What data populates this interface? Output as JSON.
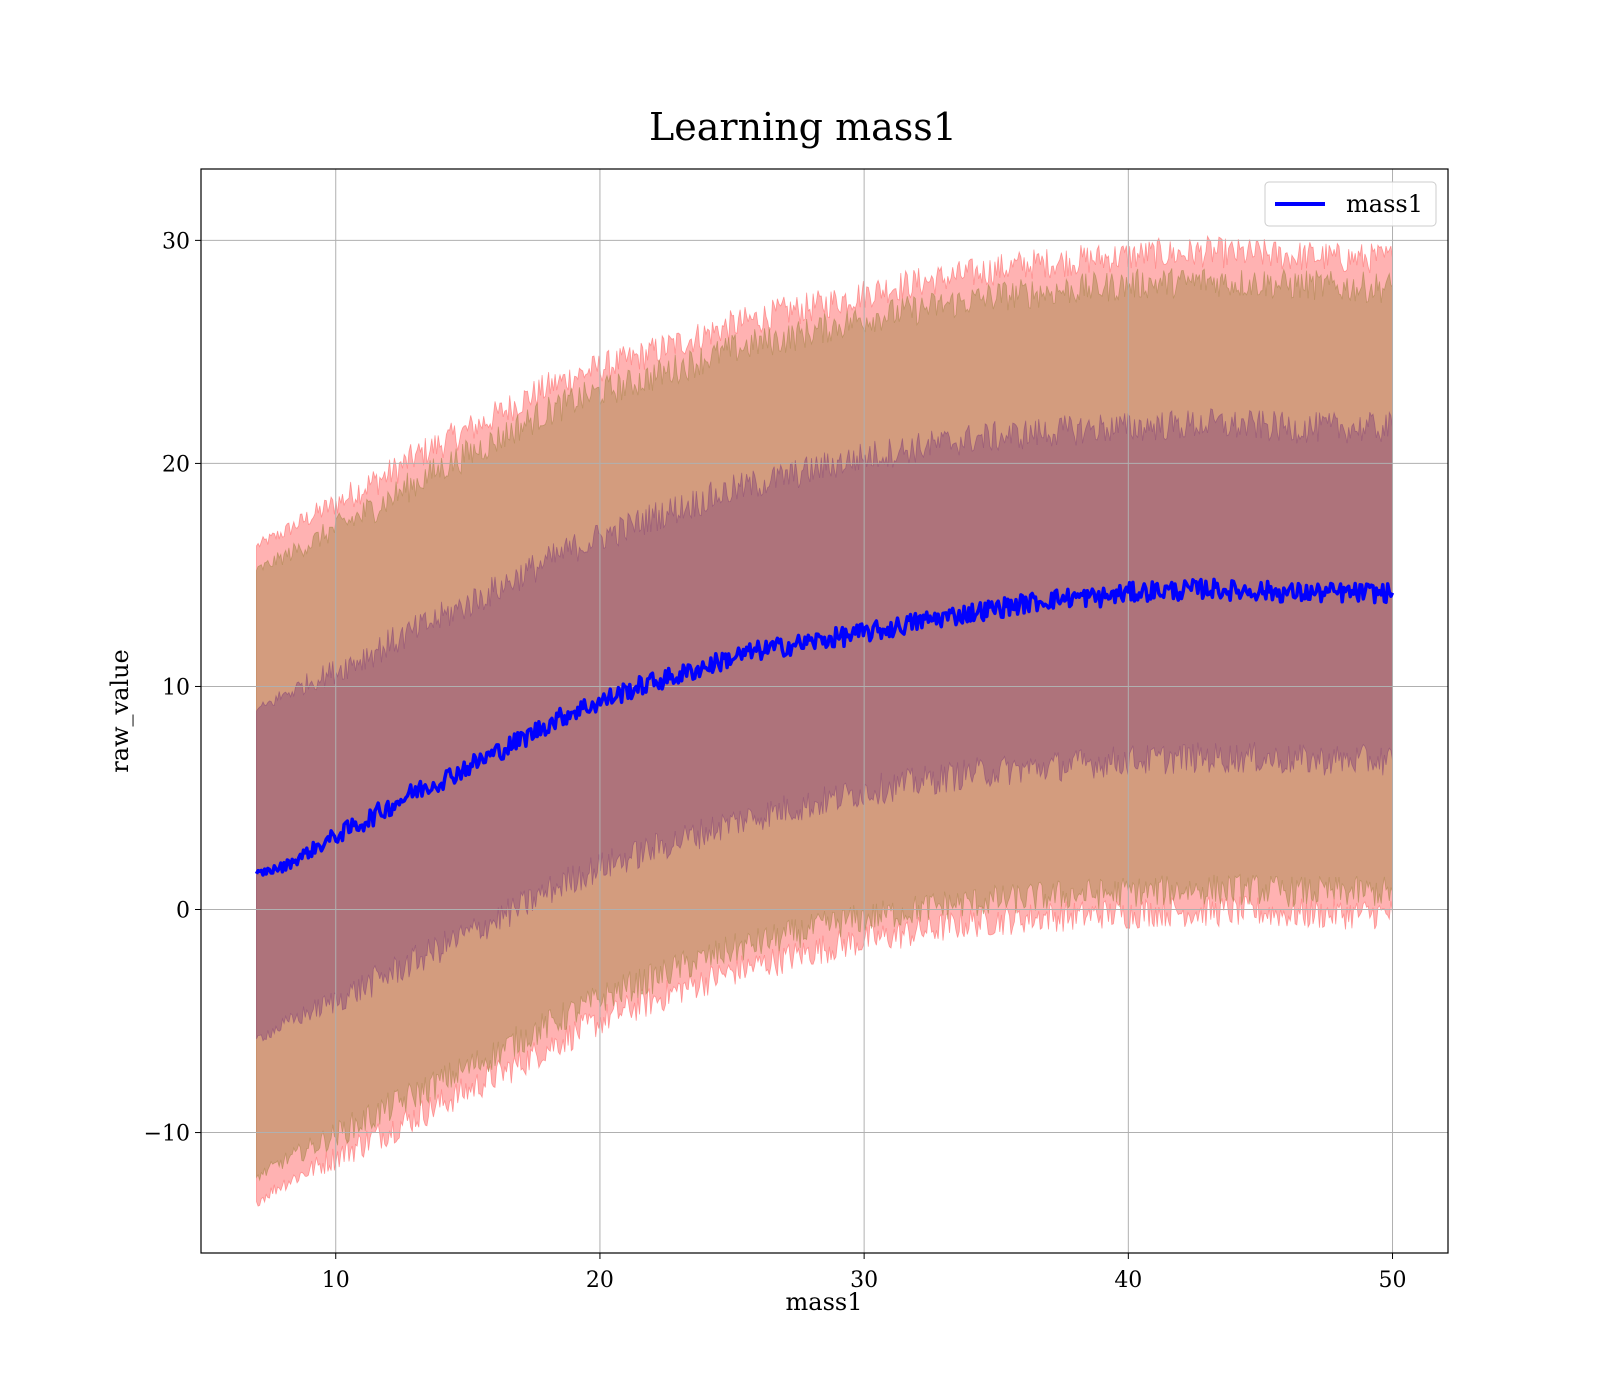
{
  "chart_data": {
    "type": "line",
    "title": "Learning mass1",
    "xlabel": "mass1",
    "ylabel": "raw_value",
    "xlim": [
      4.9,
      52.1
    ],
    "ylim": [
      -15.4,
      33.2
    ],
    "x_ticks": [
      10,
      20,
      30,
      40,
      50
    ],
    "x_tick_labels": [
      "10",
      "20",
      "30",
      "40",
      "50"
    ],
    "y_ticks": [
      -10,
      0,
      10,
      20,
      30
    ],
    "y_tick_labels": [
      "−10",
      "0",
      "10",
      "20",
      "30"
    ],
    "grid": true,
    "legend": {
      "position": "top-right",
      "entries": [
        "mass1"
      ]
    },
    "series": [
      {
        "name": "mass1",
        "color": "#0000ff",
        "x": [
          7,
          8,
          9,
          10,
          11,
          12,
          13,
          14,
          15,
          16,
          17,
          18,
          19,
          20,
          21,
          22,
          23,
          24,
          25,
          26,
          27,
          28,
          29,
          30,
          31,
          32,
          33,
          34,
          35,
          36,
          37,
          38,
          39,
          40,
          41,
          42,
          43,
          44,
          45,
          46,
          47,
          48,
          49,
          50
        ],
        "values": [
          1.6,
          1.9,
          2.6,
          3.3,
          3.9,
          4.6,
          5.3,
          5.8,
          6.4,
          7.0,
          7.6,
          8.3,
          8.9,
          9.3,
          9.8,
          10.2,
          10.5,
          10.9,
          11.3,
          11.6,
          11.8,
          12.0,
          12.2,
          12.4,
          12.6,
          12.9,
          13.1,
          13.3,
          13.5,
          13.7,
          13.9,
          14.0,
          14.0,
          14.2,
          14.3,
          14.3,
          14.4,
          14.3,
          14.3,
          14.2,
          14.2,
          14.2,
          14.2,
          14.2
        ]
      }
    ],
    "bands": [
      {
        "color": "#ff6666",
        "x": [
          7,
          8,
          9,
          10,
          11,
          12,
          13,
          14,
          15,
          16,
          17,
          18,
          19,
          20,
          21,
          22,
          23,
          24,
          25,
          26,
          27,
          28,
          29,
          30,
          31,
          32,
          33,
          34,
          35,
          36,
          37,
          38,
          39,
          40,
          41,
          42,
          43,
          44,
          45,
          46,
          47,
          48,
          49,
          50
        ],
        "upper": [
          16.3,
          16.9,
          17.6,
          18.2,
          18.9,
          19.5,
          20.3,
          20.9,
          21.5,
          22.1,
          22.8,
          23.4,
          23.9,
          24.3,
          24.6,
          25.0,
          25.4,
          25.8,
          26.2,
          26.5,
          26.8,
          27.0,
          27.3,
          27.6,
          27.9,
          28.1,
          28.3,
          28.5,
          28.7,
          28.9,
          29.0,
          29.1,
          29.2,
          29.3,
          29.4,
          29.4,
          29.5,
          29.4,
          29.4,
          29.3,
          29.3,
          29.2,
          29.2,
          29.2
        ],
        "lower": [
          -13.1,
          -12.3,
          -11.7,
          -11.1,
          -10.5,
          -9.9,
          -9.3,
          -8.7,
          -8.1,
          -7.5,
          -6.9,
          -6.2,
          -5.6,
          -5.0,
          -4.5,
          -4.1,
          -3.6,
          -3.2,
          -2.8,
          -2.5,
          -2.2,
          -1.9,
          -1.6,
          -1.4,
          -1.2,
          -1.0,
          -0.8,
          -0.6,
          -0.5,
          -0.4,
          -0.3,
          -0.3,
          -0.2,
          -0.2,
          -0.1,
          -0.1,
          -0.1,
          -0.1,
          -0.1,
          -0.2,
          -0.2,
          -0.2,
          -0.2,
          -0.2
        ]
      },
      {
        "color": "#a8864a",
        "x": [
          7,
          8,
          9,
          10,
          11,
          12,
          13,
          14,
          15,
          16,
          17,
          18,
          19,
          20,
          21,
          22,
          23,
          24,
          25,
          26,
          27,
          28,
          29,
          30,
          31,
          32,
          33,
          34,
          35,
          36,
          37,
          38,
          39,
          40,
          41,
          42,
          43,
          44,
          45,
          46,
          47,
          48,
          49,
          50
        ],
        "upper": [
          15.2,
          15.8,
          16.4,
          17.1,
          17.7,
          18.4,
          19.1,
          19.8,
          20.4,
          21.0,
          21.7,
          22.3,
          22.8,
          23.2,
          23.5,
          23.9,
          24.3,
          24.7,
          25.1,
          25.4,
          25.6,
          25.9,
          26.2,
          26.5,
          26.7,
          26.9,
          27.1,
          27.3,
          27.5,
          27.6,
          27.7,
          27.8,
          27.9,
          28.0,
          28.1,
          28.1,
          28.2,
          28.1,
          28.1,
          28.0,
          28.0,
          27.9,
          27.9,
          27.9
        ],
        "lower": [
          -12.0,
          -11.3,
          -10.7,
          -10.1,
          -9.5,
          -8.9,
          -8.3,
          -7.7,
          -7.1,
          -6.5,
          -5.8,
          -5.2,
          -4.6,
          -4.0,
          -3.5,
          -3.1,
          -2.6,
          -2.2,
          -1.8,
          -1.5,
          -1.2,
          -0.9,
          -0.6,
          -0.4,
          -0.2,
          0.0,
          0.2,
          0.3,
          0.4,
          0.5,
          0.6,
          0.7,
          0.7,
          0.8,
          0.8,
          0.9,
          0.9,
          0.9,
          0.9,
          0.8,
          0.8,
          0.8,
          0.8,
          0.8
        ]
      },
      {
        "color": "#8a4a78",
        "x": [
          7,
          8,
          9,
          10,
          11,
          12,
          13,
          14,
          15,
          16,
          17,
          18,
          19,
          20,
          21,
          22,
          23,
          24,
          25,
          26,
          27,
          28,
          29,
          30,
          31,
          32,
          33,
          34,
          35,
          36,
          37,
          38,
          39,
          40,
          41,
          42,
          43,
          44,
          45,
          46,
          47,
          48,
          49,
          50
        ],
        "upper": [
          8.9,
          9.6,
          10.2,
          10.7,
          11.3,
          11.9,
          12.5,
          13.1,
          13.7,
          14.3,
          15.0,
          15.6,
          16.2,
          16.7,
          17.1,
          17.6,
          18.0,
          18.4,
          18.8,
          19.1,
          19.4,
          19.7,
          20.0,
          20.3,
          20.5,
          20.7,
          20.9,
          21.1,
          21.2,
          21.3,
          21.4,
          21.5,
          21.6,
          21.6,
          21.7,
          21.7,
          21.8,
          21.7,
          21.7,
          21.6,
          21.6,
          21.6,
          21.6,
          21.6
        ],
        "lower": [
          -5.8,
          -5.2,
          -4.6,
          -4.1,
          -3.5,
          -2.9,
          -2.3,
          -1.7,
          -1.1,
          -0.5,
          0.1,
          0.8,
          1.4,
          1.9,
          2.3,
          2.7,
          3.1,
          3.5,
          3.9,
          4.2,
          4.5,
          4.7,
          5.0,
          5.3,
          5.5,
          5.7,
          5.9,
          6.1,
          6.2,
          6.3,
          6.4,
          6.5,
          6.6,
          6.7,
          6.7,
          6.8,
          6.8,
          6.8,
          6.8,
          6.7,
          6.7,
          6.7,
          6.7,
          6.7
        ]
      }
    ]
  }
}
